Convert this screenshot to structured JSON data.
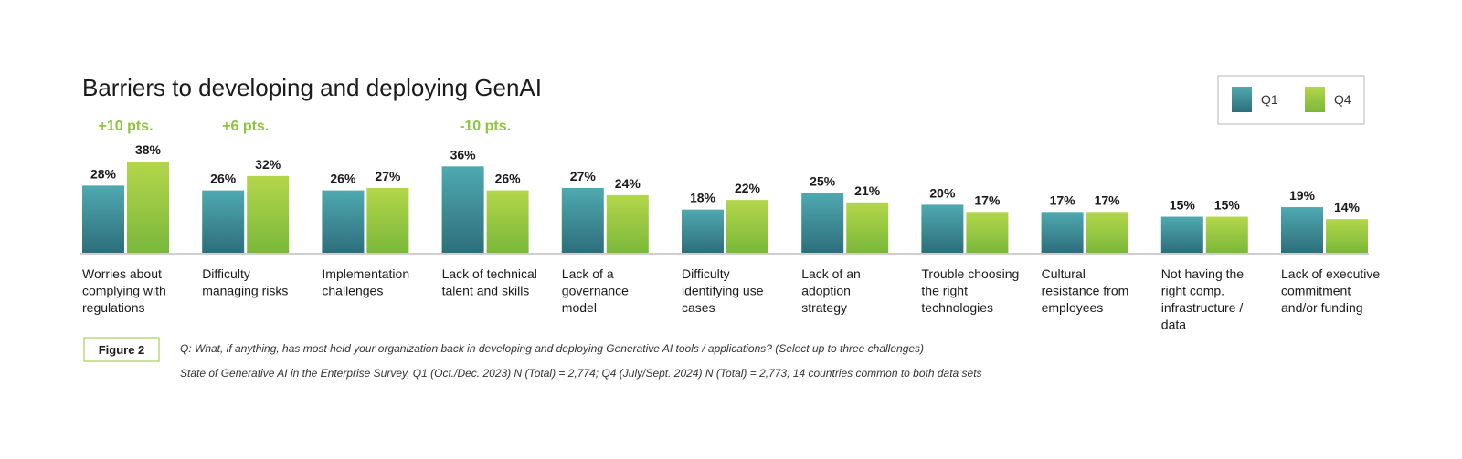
{
  "chart_data": {
    "type": "bar",
    "title": "Barriers to developing and deploying GenAI",
    "categories": [
      [
        "Worries about",
        "complying with",
        "regulations"
      ],
      [
        "Difficulty",
        "managing risks"
      ],
      [
        "Implementation",
        "challenges"
      ],
      [
        "Lack of technical",
        "talent and skills"
      ],
      [
        "Lack of a",
        "governance",
        "model"
      ],
      [
        "Difficulty",
        "identifying use",
        "cases"
      ],
      [
        "Lack of an",
        "adoption",
        "strategy"
      ],
      [
        "Trouble choosing",
        "the right",
        "technologies"
      ],
      [
        "Cultural",
        "resistance from",
        "employees"
      ],
      [
        "Not having the",
        "right comp.",
        "infrastructure /",
        "data"
      ],
      [
        "Lack of executive",
        "commitment",
        "and/or funding"
      ]
    ],
    "series": [
      {
        "name": "Q1",
        "values": [
          28,
          26,
          26,
          36,
          27,
          18,
          25,
          20,
          17,
          15,
          19
        ],
        "labels": [
          "28%",
          "26%",
          "26%",
          "36%",
          "27%",
          "18%",
          "25%",
          "20%",
          "17%",
          "15%",
          "19%"
        ]
      },
      {
        "name": "Q4",
        "values": [
          38,
          32,
          27,
          26,
          24,
          22,
          21,
          17,
          17,
          15,
          14
        ],
        "labels": [
          "38%",
          "32%",
          "27%",
          "26%",
          "24%",
          "22%",
          "21%",
          "17%",
          "17%",
          "15%",
          "14%"
        ]
      }
    ],
    "annotations": [
      {
        "category_index": 0,
        "text": "+10 pts."
      },
      {
        "category_index": 1,
        "text": "+6 pts."
      },
      {
        "category_index": 3,
        "text": "-10 pts."
      }
    ],
    "ylim": [
      0,
      40
    ],
    "legend_position": "top-right",
    "colors": {
      "q1_top": "#4fa9b0",
      "q1_bottom": "#2d6e7c",
      "q4_top": "#b4d64a",
      "q4_bottom": "#7ab83a",
      "delta": "#8cc63f",
      "axis": "#bfbfbf"
    }
  },
  "figure": {
    "label": "Figure 2",
    "question": "Q: What, if anything, has most held your organization back in developing and deploying Generative AI tools / applications? (Select up to three challenges)",
    "source": "State of Generative AI in the Enterprise Survey, Q1 (Oct./Dec. 2023) N (Total) = 2,774; Q4 (July/Sept. 2024) N (Total) = 2,773; 14 countries common to both data sets"
  }
}
